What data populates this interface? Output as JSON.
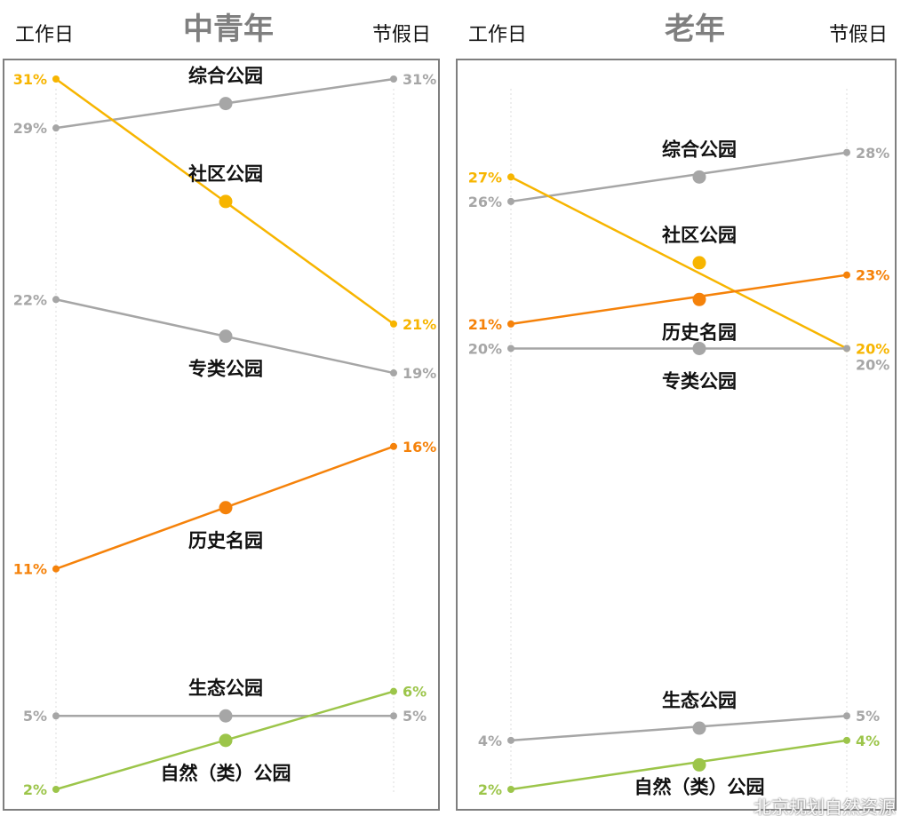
{
  "chart_data": [
    {
      "type": "line",
      "title": "中青年",
      "x": [
        "工作日",
        "节假日"
      ],
      "ylim": [
        0,
        31
      ],
      "series": [
        {
          "name": "综合公园",
          "values": [
            29,
            31
          ],
          "color": "#a6a6a6",
          "label_pos": "above"
        },
        {
          "name": "社区公园",
          "values": [
            31,
            21
          ],
          "color": "#f7b500",
          "label_pos": "above"
        },
        {
          "name": "专类公园",
          "values": [
            22,
            19
          ],
          "color": "#a6a6a6",
          "label_pos": "below"
        },
        {
          "name": "历史名园",
          "values": [
            11,
            16
          ],
          "color": "#f5820a",
          "label_pos": "below"
        },
        {
          "name": "生态公园",
          "values": [
            5,
            5
          ],
          "color": "#a6a6a6",
          "label_pos": "above"
        },
        {
          "name": "自然（类）公园",
          "values": [
            2,
            6
          ],
          "color": "#9cc54a",
          "label_pos": "below"
        }
      ]
    },
    {
      "type": "line",
      "title": "老年",
      "x": [
        "工作日",
        "节假日"
      ],
      "ylim": [
        0,
        31
      ],
      "series": [
        {
          "name": "综合公园",
          "values": [
            26,
            28
          ],
          "color": "#a6a6a6",
          "label_pos": "above"
        },
        {
          "name": "社区公园",
          "values": [
            27,
            20
          ],
          "color": "#f7b500",
          "label_pos": "above"
        },
        {
          "name": "历史名园",
          "values": [
            21,
            23
          ],
          "color": "#f5820a",
          "label_pos": "below"
        },
        {
          "name": "专类公园",
          "values": [
            20,
            20
          ],
          "color": "#a6a6a6",
          "label_pos": "below"
        },
        {
          "name": "生态公园",
          "values": [
            4,
            5
          ],
          "color": "#a6a6a6",
          "label_pos": "above"
        },
        {
          "name": "自然（类）公园",
          "values": [
            2,
            4
          ],
          "color": "#9cc54a",
          "label_pos": "below"
        }
      ]
    }
  ],
  "watermark": "北京规划自然资源"
}
